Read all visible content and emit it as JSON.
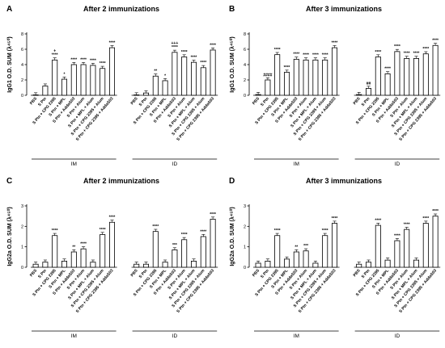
{
  "chart_data": [
    {
      "id": "A",
      "letter": "A",
      "title": "After 2 immunizations",
      "type": "bar",
      "ylabel": "IgG1 O.D. SUM (λ⁴⁵⁰)",
      "ylim": [
        0,
        8
      ],
      "yticks": [
        0,
        2,
        4,
        6,
        8
      ],
      "groups": [
        {
          "label": "IM",
          "categories": [
            "PBS",
            "S Ptn",
            "S Ptn + CPG 2395",
            "S Ptn + MPL",
            "S Ptn + AddaS03",
            "S Ptn + Alum",
            "S Ptn + MPL + Alum",
            "S Ptn + CPG 2395 + Alum",
            "S Ptn + CPG 2395 + AddaS03"
          ],
          "values": [
            0.05,
            1.2,
            4.6,
            2.1,
            4.0,
            4.0,
            3.9,
            3.5,
            6.2
          ],
          "annotations": [
            "",
            "",
            "+\n****",
            "*",
            "****",
            "****",
            "****",
            "****",
            "****"
          ]
        },
        {
          "label": "ID",
          "categories": [
            "PBS",
            "S Ptn",
            "S Ptn + CPG 2395",
            "S Ptn + MPL",
            "S Ptn + AddaS03",
            "S Ptn + Alum",
            "S Ptn + MPL + Alum",
            "S Ptn + CPG 2395 + Alum",
            "S Ptn + CPG 2395 + AddaS03"
          ],
          "values": [
            0.05,
            0.3,
            2.5,
            1.9,
            5.6,
            5.0,
            4.3,
            3.6,
            5.9
          ],
          "annotations": [
            "",
            "",
            "**",
            "*",
            "+++\n****",
            "****",
            "****",
            "****",
            "****"
          ]
        }
      ]
    },
    {
      "id": "B",
      "letter": "B",
      "title": "After 3 immunizations",
      "type": "bar",
      "ylabel": "IgG1 O.D. SUM (λ⁴⁵⁰)",
      "ylim": [
        0,
        8
      ],
      "yticks": [
        0,
        2,
        4,
        6,
        8
      ],
      "groups": [
        {
          "label": "IM",
          "categories": [
            "PBS",
            "S Ptn",
            "S Ptn + CPG 2395",
            "S Ptn + MPL",
            "S Ptn + AddaS03",
            "S Ptn + Alum",
            "S Ptn + MPL + Alum",
            "S Ptn + CPG 2395 + Alum",
            "S Ptn + CPG 2395 + AddaS03"
          ],
          "values": [
            0.1,
            2.0,
            5.3,
            3.0,
            4.7,
            4.6,
            4.6,
            4.6,
            6.2
          ],
          "annotations": [
            "",
            "####",
            "****",
            "****",
            "****",
            "****",
            "****",
            "****",
            "****"
          ]
        },
        {
          "label": "ID",
          "categories": [
            "PBS",
            "S Ptn",
            "S Ptn + CPG 2395",
            "S Ptn + MPL",
            "S Ptn + AddaS03",
            "S Ptn + Alum",
            "S Ptn + MPL + Alum",
            "S Ptn + CPG 2395 + Alum",
            "S Ptn + CPG 2395 + AddaS03"
          ],
          "values": [
            0.1,
            0.9,
            5.0,
            2.8,
            5.7,
            4.8,
            4.8,
            5.4,
            6.5
          ],
          "annotations": [
            "",
            "##",
            "****",
            "****",
            "****",
            "****",
            "****",
            "****",
            "****"
          ]
        }
      ]
    },
    {
      "id": "C",
      "letter": "C",
      "title": "After 2 immunizations",
      "type": "bar",
      "ylabel": "IgG2a O.D. SUM (λ⁴⁵⁰)",
      "ylim": [
        0,
        3
      ],
      "yticks": [
        0,
        1,
        2,
        3
      ],
      "groups": [
        {
          "label": "IM",
          "categories": [
            "PBS",
            "S Ptn",
            "S Ptn + CPG 2395",
            "S Ptn + MPL",
            "S Ptn + AddaS03",
            "S Ptn + Alum",
            "S Ptn + MPL + Alum",
            "S Ptn + CPG 2395 + Alum",
            "S Ptn + CPG 2395 + AddaS03"
          ],
          "values": [
            0.15,
            0.25,
            1.55,
            0.3,
            0.75,
            0.9,
            0.25,
            1.6,
            2.2
          ],
          "annotations": [
            "",
            "",
            "****",
            "",
            "**",
            "****",
            "",
            "****",
            "****"
          ]
        },
        {
          "label": "ID",
          "categories": [
            "PBS",
            "S Ptn",
            "S Ptn + CPG 2395",
            "S Ptn + MPL",
            "S Ptn + AddaS03",
            "S Ptn + Alum",
            "S Ptn + MPL + Alum",
            "S Ptn + CPG 2395 + Alum",
            "S Ptn + CPG 2395 + AddaS03"
          ],
          "values": [
            0.15,
            0.15,
            1.75,
            0.25,
            0.85,
            1.35,
            0.3,
            1.5,
            2.35
          ],
          "annotations": [
            "",
            "",
            "****",
            "",
            "***",
            "****",
            "",
            "****",
            "****"
          ]
        }
      ]
    },
    {
      "id": "D",
      "letter": "D",
      "title": "After 3 immunizations",
      "type": "bar",
      "ylabel": "IgG2a O.D. SUM (λ⁴⁵⁰)",
      "ylim": [
        0,
        3
      ],
      "yticks": [
        0,
        1,
        2,
        3
      ],
      "groups": [
        {
          "label": "IM",
          "categories": [
            "PBS",
            "S Ptn",
            "S Ptn + CPG 2395",
            "S Ptn + MPL",
            "S Ptn + AddaS03",
            "S Ptn + Alum",
            "S Ptn + MPL + Alum",
            "S Ptn + CPG 2395 + Alum",
            "S Ptn + CPG 2395 + AddaS03"
          ],
          "values": [
            0.2,
            0.3,
            1.55,
            0.4,
            0.75,
            0.8,
            0.2,
            1.55,
            2.15
          ],
          "annotations": [
            "",
            "",
            "****",
            "",
            "**",
            "***",
            "",
            "****",
            "****"
          ]
        },
        {
          "label": "ID",
          "categories": [
            "PBS",
            "S Ptn",
            "S Ptn + CPG 2395",
            "S Ptn + MPL",
            "S Ptn + AddaS03",
            "S Ptn + Alum",
            "S Ptn + MPL + Alum",
            "S Ptn + CPG 2395 + Alum",
            "S Ptn + CPG 2395 + AddaS03"
          ],
          "values": [
            0.15,
            0.25,
            2.05,
            0.35,
            1.3,
            1.85,
            0.35,
            2.15,
            2.5
          ],
          "annotations": [
            "",
            "",
            "****",
            "",
            "****",
            "****",
            "",
            "****",
            "****"
          ]
        }
      ]
    }
  ]
}
